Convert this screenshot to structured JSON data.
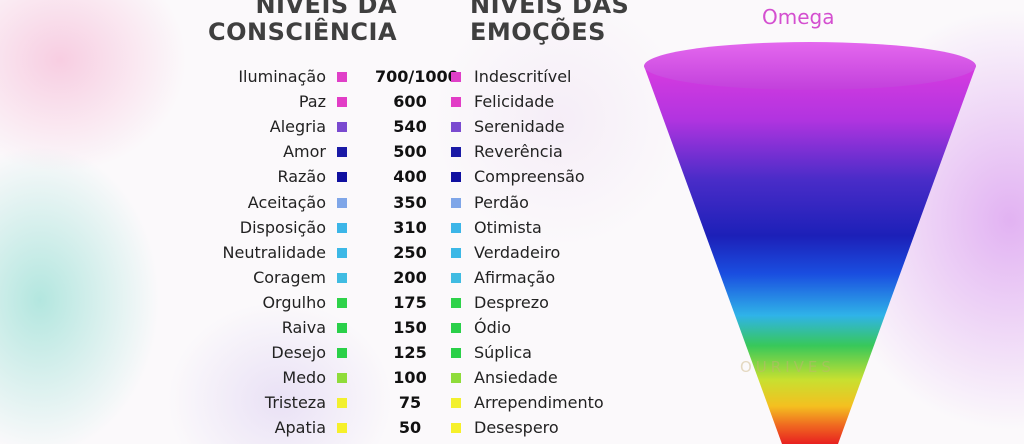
{
  "headings": {
    "consciousness_line1": "NÍVEIS DA",
    "consciousness_line2": "CONSCIÊNCIA",
    "emotions_line1": "NÍVEIS DAS",
    "emotions_line2": "EMOÇÕES"
  },
  "funnel": {
    "label": "Omega",
    "watermark": "OURIVES"
  },
  "rows": [
    {
      "level": "Iluminação",
      "value": "700/1000",
      "emotion": "Indescritível",
      "color": "#e040c8"
    },
    {
      "level": "Paz",
      "value": "600",
      "emotion": "Felicidade",
      "color": "#e23dc6"
    },
    {
      "level": "Alegria",
      "value": "540",
      "emotion": "Serenidade",
      "color": "#7a4ad0"
    },
    {
      "level": "Amor",
      "value": "500",
      "emotion": "Reverência",
      "color": "#1a1aa6"
    },
    {
      "level": "Razão",
      "value": "400",
      "emotion": "Compreensão",
      "color": "#1010a0"
    },
    {
      "level": "Aceitação",
      "value": "350",
      "emotion": "Perdão",
      "color": "#7fa6e8"
    },
    {
      "level": "Disposição",
      "value": "310",
      "emotion": "Otimista",
      "color": "#3cb6e8"
    },
    {
      "level": "Neutralidade",
      "value": "250",
      "emotion": "Verdadeiro",
      "color": "#3cb8e6"
    },
    {
      "level": "Coragem",
      "value": "200",
      "emotion": "Afirmação",
      "color": "#40bce2"
    },
    {
      "level": "Orgulho",
      "value": "175",
      "emotion": "Desprezo",
      "color": "#2ed24a"
    },
    {
      "level": "Raiva",
      "value": "150",
      "emotion": "Ódio",
      "color": "#2ad04a"
    },
    {
      "level": "Desejo",
      "value": "125",
      "emotion": "Súplica",
      "color": "#2ad048"
    },
    {
      "level": "Medo",
      "value": "100",
      "emotion": "Ansiedade",
      "color": "#8fdc3a"
    },
    {
      "level": "Tristeza",
      "value": "75",
      "emotion": "Arrependimento",
      "color": "#f2f02e"
    },
    {
      "level": "Apatia",
      "value": "50",
      "emotion": "Desespero",
      "color": "#f6f02a"
    }
  ]
}
